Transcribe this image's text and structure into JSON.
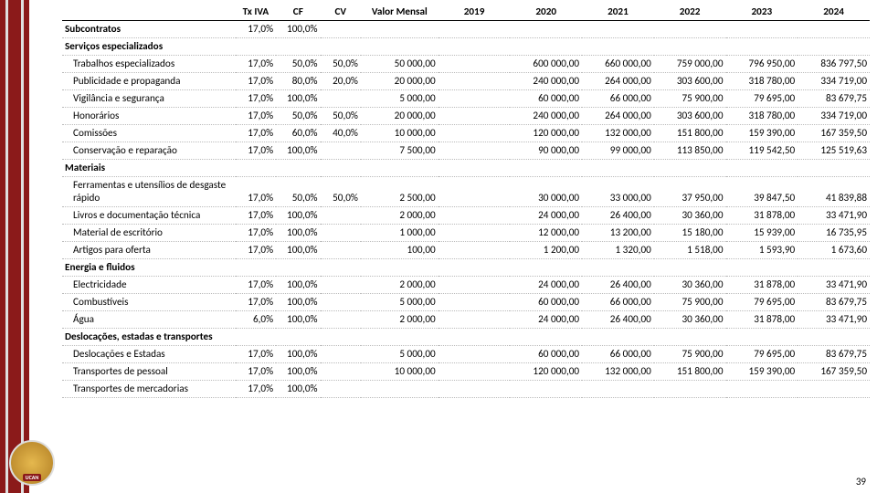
{
  "columns": [
    "Tx IVA",
    "CF",
    "CV",
    "Valor Mensal",
    "2019",
    "2020",
    "2021",
    "2022",
    "2023",
    "2024"
  ],
  "page_number": "39",
  "logo_label": "UCAN",
  "rows": [
    {
      "name": "Subcontratos",
      "bold": true,
      "iva": "17,0%",
      "cf": "100,0%",
      "cv": "",
      "val": "",
      "y19": "",
      "y20": "",
      "y21": "",
      "y22": "",
      "y23": "",
      "y24": ""
    },
    {
      "name": "Serviços especializados",
      "bold": true,
      "iva": "",
      "cf": "",
      "cv": "",
      "val": "",
      "y19": "",
      "y20": "",
      "y21": "",
      "y22": "",
      "y23": "",
      "y24": ""
    },
    {
      "name": "Trabalhos especializados",
      "indent": true,
      "iva": "17,0%",
      "cf": "50,0%",
      "cv": "50,0%",
      "val": "50 000,00",
      "y19": "",
      "y20": "600 000,00",
      "y21": "660 000,00",
      "y22": "759 000,00",
      "y23": "796 950,00",
      "y24": "836 797,50"
    },
    {
      "name": "Publicidade e propaganda",
      "indent": true,
      "iva": "17,0%",
      "cf": "80,0%",
      "cv": "20,0%",
      "val": "20 000,00",
      "y19": "",
      "y20": "240 000,00",
      "y21": "264 000,00",
      "y22": "303 600,00",
      "y23": "318 780,00",
      "y24": "334 719,00"
    },
    {
      "name": "Vigilância e segurança",
      "indent": true,
      "iva": "17,0%",
      "cf": "100,0%",
      "cv": "",
      "val": "5 000,00",
      "y19": "",
      "y20": "60 000,00",
      "y21": "66 000,00",
      "y22": "75 900,00",
      "y23": "79 695,00",
      "y24": "83 679,75"
    },
    {
      "name": "Honorários",
      "indent": true,
      "iva": "17,0%",
      "cf": "50,0%",
      "cv": "50,0%",
      "val": "20 000,00",
      "y19": "",
      "y20": "240 000,00",
      "y21": "264 000,00",
      "y22": "303 600,00",
      "y23": "318 780,00",
      "y24": "334 719,00"
    },
    {
      "name": "Comissões",
      "indent": true,
      "iva": "17,0%",
      "cf": "60,0%",
      "cv": "40,0%",
      "val": "10 000,00",
      "y19": "",
      "y20": "120 000,00",
      "y21": "132 000,00",
      "y22": "151 800,00",
      "y23": "159 390,00",
      "y24": "167 359,50"
    },
    {
      "name": "Conservação e reparação",
      "indent": true,
      "iva": "17,0%",
      "cf": "100,0%",
      "cv": "",
      "val": "7 500,00",
      "y19": "",
      "y20": "90 000,00",
      "y21": "99 000,00",
      "y22": "113 850,00",
      "y23": "119 542,50",
      "y24": "125 519,63"
    },
    {
      "name": "Materiais",
      "bold": true,
      "iva": "",
      "cf": "",
      "cv": "",
      "val": "",
      "y19": "",
      "y20": "",
      "y21": "",
      "y22": "",
      "y23": "",
      "y24": ""
    },
    {
      "name": "Ferramentas e utensílios de desgaste rápido",
      "indent": true,
      "wrap": true,
      "iva": "17,0%",
      "cf": "50,0%",
      "cv": "50,0%",
      "val": "2 500,00",
      "y19": "",
      "y20": "30 000,00",
      "y21": "33 000,00",
      "y22": "37 950,00",
      "y23": "39 847,50",
      "y24": "41 839,88"
    },
    {
      "name": "Livros e documentação técnica",
      "indent": true,
      "iva": "17,0%",
      "cf": "100,0%",
      "cv": "",
      "val": "2 000,00",
      "y19": "",
      "y20": "24 000,00",
      "y21": "26 400,00",
      "y22": "30 360,00",
      "y23": "31 878,00",
      "y24": "33 471,90"
    },
    {
      "name": "Material de escritório",
      "indent": true,
      "iva": "17,0%",
      "cf": "100,0%",
      "cv": "",
      "val": "1 000,00",
      "y19": "",
      "y20": "12 000,00",
      "y21": "13 200,00",
      "y22": "15 180,00",
      "y23": "15 939,00",
      "y24": "16 735,95"
    },
    {
      "name": "Artigos para oferta",
      "indent": true,
      "iva": "17,0%",
      "cf": "100,0%",
      "cv": "",
      "val": "100,00",
      "y19": "",
      "y20": "1 200,00",
      "y21": "1 320,00",
      "y22": "1 518,00",
      "y23": "1 593,90",
      "y24": "1 673,60"
    },
    {
      "name": "Energia e fluidos",
      "bold": true,
      "iva": "",
      "cf": "",
      "cv": "",
      "val": "",
      "y19": "",
      "y20": "",
      "y21": "",
      "y22": "",
      "y23": "",
      "y24": ""
    },
    {
      "name": "Electricidade",
      "indent": true,
      "iva": "17,0%",
      "cf": "100,0%",
      "cv": "",
      "val": "2 000,00",
      "y19": "",
      "y20": "24 000,00",
      "y21": "26 400,00",
      "y22": "30 360,00",
      "y23": "31 878,00",
      "y24": "33 471,90"
    },
    {
      "name": "Combustíveis",
      "indent": true,
      "iva": "17,0%",
      "cf": "100,0%",
      "cv": "",
      "val": "5 000,00",
      "y19": "",
      "y20": "60 000,00",
      "y21": "66 000,00",
      "y22": "75 900,00",
      "y23": "79 695,00",
      "y24": "83 679,75"
    },
    {
      "name": "Água",
      "indent": true,
      "iva": "6,0%",
      "cf": "100,0%",
      "cv": "",
      "val": "2 000,00",
      "y19": "",
      "y20": "24 000,00",
      "y21": "26 400,00",
      "y22": "30 360,00",
      "y23": "31 878,00",
      "y24": "33 471,90"
    },
    {
      "name": "Deslocações, estadas e transportes",
      "bold": true,
      "wrap": true,
      "iva": "",
      "cf": "",
      "cv": "",
      "val": "",
      "y19": "",
      "y20": "",
      "y21": "",
      "y22": "",
      "y23": "",
      "y24": ""
    },
    {
      "name": "Deslocações e Estadas",
      "indent": true,
      "iva": "17,0%",
      "cf": "100,0%",
      "cv": "",
      "val": "5 000,00",
      "y19": "",
      "y20": "60 000,00",
      "y21": "66 000,00",
      "y22": "75 900,00",
      "y23": "79 695,00",
      "y24": "83 679,75"
    },
    {
      "name": "Transportes de pessoal",
      "indent": true,
      "iva": "17,0%",
      "cf": "100,0%",
      "cv": "",
      "val": "10 000,00",
      "y19": "",
      "y20": "120 000,00",
      "y21": "132 000,00",
      "y22": "151 800,00",
      "y23": "159 390,00",
      "y24": "167 359,50"
    },
    {
      "name": "Transportes de mercadorias",
      "indent": true,
      "iva": "17,0%",
      "cf": "100,0%",
      "cv": "",
      "val": "",
      "y19": "",
      "y20": "",
      "y21": "",
      "y22": "",
      "y23": "",
      "y24": ""
    }
  ]
}
